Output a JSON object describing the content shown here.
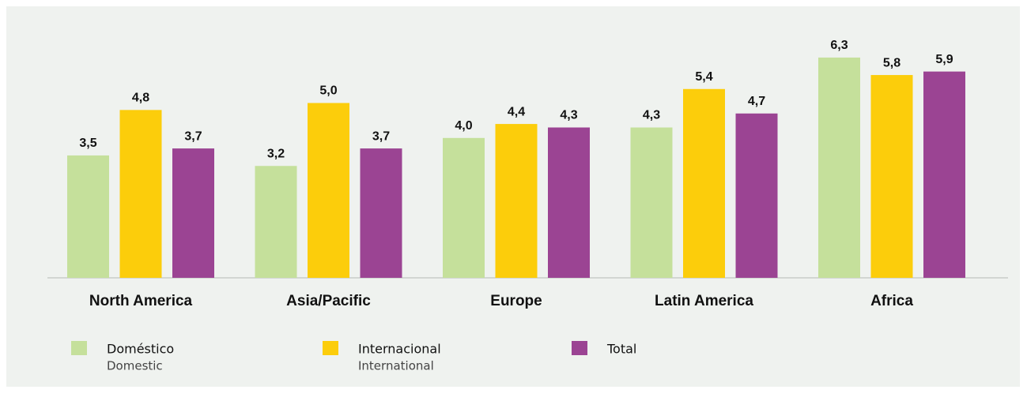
{
  "chart_data": {
    "type": "bar",
    "categories": [
      "North America",
      "Asia/Pacific",
      "Europe",
      "Latin America",
      "Africa"
    ],
    "series": [
      {
        "name": "Doméstico",
        "name_translation": "Domestic",
        "color": "#c5e09b",
        "values": [
          3.5,
          3.2,
          4.0,
          4.3,
          6.3
        ],
        "value_labels": [
          "3,5",
          "3,2",
          "4,0",
          "4,3",
          "6,3"
        ]
      },
      {
        "name": "Internacional",
        "name_translation": "International",
        "color": "#fccd0b",
        "values": [
          4.8,
          5.0,
          4.4,
          5.4,
          5.8
        ],
        "value_labels": [
          "4,8",
          "5,0",
          "4,4",
          "5,4",
          "5,8"
        ]
      },
      {
        "name": "Total",
        "color": "#9b4493",
        "values": [
          3.7,
          3.7,
          4.3,
          4.7,
          5.9
        ],
        "value_labels": [
          "3,7",
          "3,7",
          "4,3",
          "4,7",
          "5,9"
        ]
      }
    ]
  }
}
